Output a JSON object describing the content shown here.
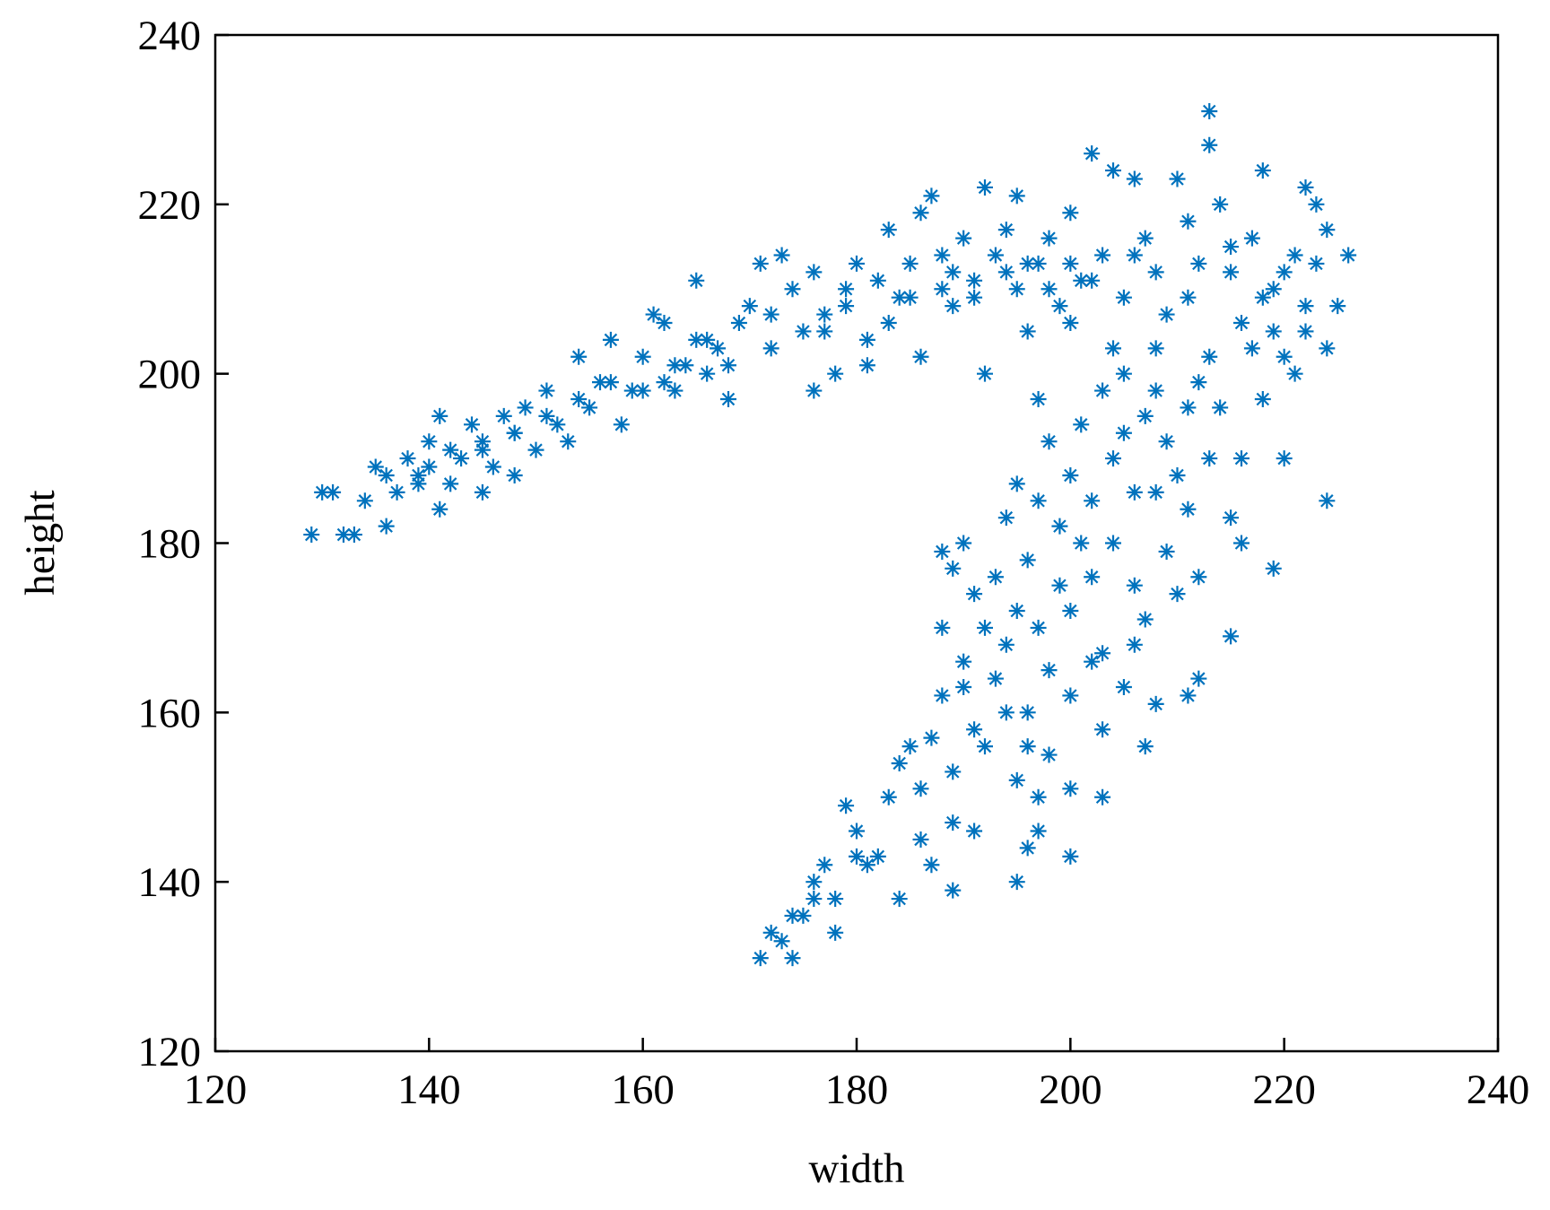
{
  "chart_data": {
    "type": "scatter",
    "x_label": "width",
    "y_label": "height",
    "color": "#0072bd",
    "marker": "asterisk",
    "xlim": [
      120,
      240
    ],
    "ylim": [
      120,
      240
    ],
    "xticks": [
      120,
      140,
      160,
      180,
      200,
      220,
      240
    ],
    "yticks": [
      120,
      140,
      160,
      180,
      200,
      220,
      240
    ],
    "grid": false,
    "x": [
      129,
      130,
      131,
      132,
      133,
      134,
      135,
      136,
      136,
      137,
      138,
      139,
      140,
      140,
      141,
      141,
      142,
      143,
      144,
      145,
      145,
      146,
      147,
      148,
      148,
      149,
      150,
      151,
      152,
      153,
      154,
      155,
      156,
      157,
      158,
      159,
      160,
      161,
      162,
      162,
      163,
      164,
      165,
      165,
      166,
      167,
      168,
      169,
      170,
      171,
      172,
      173,
      174,
      175,
      176,
      176,
      177,
      178,
      179,
      180,
      181,
      182,
      183,
      184,
      185,
      186,
      186,
      187,
      188,
      189,
      190,
      191,
      192,
      192,
      193,
      194,
      195,
      195,
      196,
      197,
      198,
      199,
      200,
      201,
      202,
      203,
      204,
      205,
      206,
      207,
      208,
      209,
      210,
      211,
      212,
      213,
      213,
      214,
      215,
      216,
      217,
      218,
      219,
      220,
      221,
      222,
      222,
      223,
      224,
      225,
      226,
      224,
      223,
      221,
      218,
      219,
      216,
      215,
      216,
      219,
      220,
      224,
      215,
      212,
      211,
      208,
      207,
      203,
      200,
      200,
      197,
      196,
      195,
      191,
      189,
      189,
      187,
      186,
      184,
      183,
      182,
      181,
      180,
      179,
      178,
      178,
      177,
      176,
      175,
      174,
      173,
      172,
      171,
      174,
      176,
      180,
      184,
      185,
      186,
      187,
      188,
      188,
      188,
      189,
      190,
      190,
      191,
      191,
      192,
      193,
      193,
      194,
      194,
      195,
      195,
      196,
      196,
      197,
      197,
      198,
      198,
      199,
      199,
      200,
      200,
      201,
      201,
      202,
      202,
      203,
      203,
      204,
      204,
      205,
      205,
      206,
      206,
      207,
      207,
      208,
      208,
      209,
      209,
      210,
      210,
      211,
      211,
      212,
      212,
      213,
      214,
      194,
      195,
      196,
      197,
      198,
      192,
      190,
      189,
      200,
      202,
      203,
      205,
      206,
      197,
      200,
      202,
      204,
      206,
      208,
      211,
      213,
      215,
      217,
      218,
      220,
      222,
      188,
      183,
      181,
      179,
      177,
      172,
      168,
      166,
      163,
      160,
      157,
      154,
      151,
      148,
      145,
      142,
      139,
      200,
      198,
      196,
      194,
      191,
      189,
      185
    ],
    "values": [
      181,
      186,
      186,
      181,
      181,
      185,
      189,
      182,
      188,
      186,
      190,
      187,
      189,
      192,
      195,
      184,
      187,
      190,
      194,
      186,
      192,
      189,
      195,
      188,
      193,
      196,
      191,
      198,
      194,
      192,
      202,
      196,
      199,
      204,
      194,
      198,
      202,
      207,
      199,
      206,
      198,
      201,
      211,
      204,
      200,
      203,
      197,
      206,
      208,
      213,
      203,
      214,
      210,
      205,
      198,
      212,
      207,
      200,
      210,
      213,
      204,
      211,
      217,
      209,
      213,
      202,
      219,
      221,
      214,
      208,
      216,
      211,
      222,
      200,
      214,
      217,
      210,
      221,
      205,
      213,
      216,
      208,
      219,
      211,
      226,
      214,
      224,
      209,
      223,
      216,
      212,
      207,
      223,
      218,
      213,
      231,
      227,
      220,
      212,
      206,
      216,
      224,
      210,
      202,
      214,
      222,
      208,
      220,
      203,
      208,
      214,
      217,
      213,
      200,
      197,
      205,
      190,
      183,
      180,
      177,
      190,
      185,
      169,
      164,
      162,
      161,
      156,
      150,
      151,
      143,
      146,
      144,
      140,
      146,
      147,
      139,
      142,
      145,
      138,
      150,
      143,
      142,
      146,
      149,
      138,
      134,
      142,
      140,
      136,
      131,
      133,
      134,
      131,
      136,
      138,
      143,
      154,
      156,
      151,
      157,
      162,
      170,
      179,
      177,
      180,
      166,
      158,
      174,
      170,
      164,
      176,
      168,
      183,
      172,
      187,
      178,
      160,
      185,
      170,
      192,
      165,
      182,
      175,
      188,
      172,
      180,
      194,
      185,
      176,
      198,
      167,
      190,
      180,
      200,
      193,
      186,
      175,
      195,
      171,
      186,
      198,
      179,
      192,
      188,
      174,
      196,
      184,
      176,
      199,
      190,
      196,
      160,
      152,
      156,
      150,
      155,
      156,
      163,
      153,
      162,
      166,
      158,
      163,
      168,
      197,
      206,
      211,
      203,
      214,
      203,
      209,
      202,
      215,
      203,
      209,
      212,
      205,
      210,
      206,
      201,
      208,
      205,
      207,
      201,
      204,
      201,
      198,
      199,
      197,
      195,
      193,
      191,
      191,
      188,
      213,
      210,
      213,
      212,
      209,
      212,
      209
    ]
  }
}
